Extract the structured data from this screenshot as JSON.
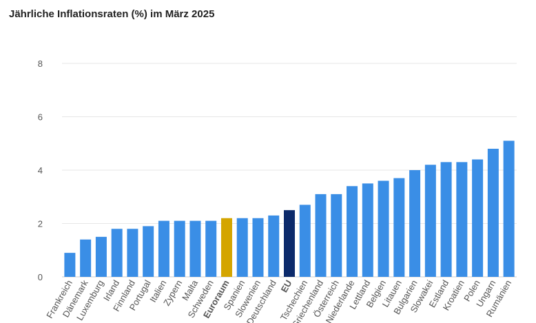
{
  "chart_data": {
    "type": "bar",
    "title": "Jährliche Inflationsraten (%) im März 2025",
    "xlabel": "",
    "ylabel": "",
    "ylim": [
      0,
      8
    ],
    "yticks": [
      0,
      2,
      4,
      6,
      8
    ],
    "grid": true,
    "colors": {
      "default": "#3a8ee6",
      "Euroraum": "#d4a500",
      "EU": "#0c2a6b"
    },
    "bold_categories": [
      "Euroraum",
      "EU"
    ],
    "categories": [
      "Frankreich",
      "Dänemark",
      "Luxemburg",
      "Irland",
      "Finnland",
      "Portugal",
      "Italien",
      "Zypern",
      "Malta",
      "Schweden",
      "Euroraum",
      "Spanien",
      "Slowenien",
      "Deutschland",
      "EU",
      "Tschechien",
      "Griechenland",
      "Österreich",
      "Niederlande",
      "Lettland",
      "Belgien",
      "Litauen",
      "Bulgarien",
      "Slowakei",
      "Estland",
      "Kroatien",
      "Polen",
      "Ungarn",
      "Rumänien"
    ],
    "values": [
      0.9,
      1.4,
      1.5,
      1.8,
      1.8,
      1.9,
      2.1,
      2.1,
      2.1,
      2.1,
      2.2,
      2.2,
      2.2,
      2.3,
      2.5,
      2.7,
      3.1,
      3.1,
      3.4,
      3.5,
      3.6,
      3.7,
      4.0,
      4.2,
      4.3,
      4.3,
      4.4,
      4.8,
      5.1
    ]
  }
}
